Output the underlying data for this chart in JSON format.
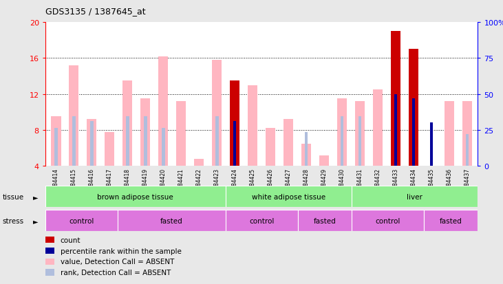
{
  "title": "GDS3135 / 1387645_at",
  "samples": [
    "GSM184414",
    "GSM184415",
    "GSM184416",
    "GSM184417",
    "GSM184418",
    "GSM184419",
    "GSM184420",
    "GSM184421",
    "GSM184422",
    "GSM184423",
    "GSM184424",
    "GSM184425",
    "GSM184426",
    "GSM184427",
    "GSM184428",
    "GSM184429",
    "GSM184430",
    "GSM184431",
    "GSM184432",
    "GSM184433",
    "GSM184434",
    "GSM184435",
    "GSM184436",
    "GSM184437"
  ],
  "pink_values": [
    9.5,
    15.2,
    9.2,
    7.8,
    13.5,
    11.5,
    16.2,
    11.2,
    4.8,
    15.8,
    13.5,
    13.0,
    8.2,
    9.2,
    6.5,
    5.2,
    11.5,
    11.2,
    12.5,
    null,
    null,
    null,
    11.2,
    11.2
  ],
  "light_blue_values": [
    8.2,
    9.5,
    9.0,
    null,
    9.5,
    9.5,
    8.2,
    null,
    null,
    9.5,
    null,
    null,
    null,
    null,
    7.8,
    null,
    9.5,
    9.5,
    null,
    null,
    null,
    null,
    null,
    7.5
  ],
  "red_values": [
    null,
    null,
    null,
    null,
    null,
    null,
    null,
    null,
    null,
    null,
    13.5,
    null,
    null,
    null,
    null,
    null,
    null,
    null,
    null,
    19.0,
    17.0,
    null,
    null,
    null
  ],
  "blue_values": [
    null,
    null,
    null,
    null,
    null,
    null,
    null,
    null,
    null,
    null,
    9.0,
    null,
    null,
    null,
    null,
    null,
    null,
    null,
    null,
    12.0,
    11.5,
    8.8,
    null,
    null
  ],
  "tissue_groups": [
    {
      "label": "brown adipose tissue",
      "start": 0,
      "end": 10,
      "color": "#90EE90"
    },
    {
      "label": "white adipose tissue",
      "start": 10,
      "end": 17,
      "color": "#90EE90"
    },
    {
      "label": "liver",
      "start": 17,
      "end": 24,
      "color": "#90EE90"
    }
  ],
  "stress_groups": [
    {
      "label": "control",
      "start": 0,
      "end": 4,
      "color": "#DD77DD"
    },
    {
      "label": "fasted",
      "start": 4,
      "end": 10,
      "color": "#DD77DD"
    },
    {
      "label": "control",
      "start": 10,
      "end": 14,
      "color": "#DD77DD"
    },
    {
      "label": "fasted",
      "start": 14,
      "end": 17,
      "color": "#DD77DD"
    },
    {
      "label": "control",
      "start": 17,
      "end": 21,
      "color": "#DD77DD"
    },
    {
      "label": "fasted",
      "start": 21,
      "end": 24,
      "color": "#DD77DD"
    }
  ],
  "ylim_left": [
    4,
    20
  ],
  "ylim_right": [
    0,
    100
  ],
  "yticks_left": [
    4,
    8,
    12,
    16,
    20
  ],
  "yticks_right": [
    0,
    25,
    50,
    75,
    100
  ],
  "background_color": "#e8e8e8",
  "plot_bg": "#ffffff",
  "legend_items": [
    {
      "color": "#cc0000",
      "label": "count"
    },
    {
      "color": "#000099",
      "label": "percentile rank within the sample"
    },
    {
      "color": "#ffb6c1",
      "label": "value, Detection Call = ABSENT"
    },
    {
      "color": "#b0bedd",
      "label": "rank, Detection Call = ABSENT"
    }
  ]
}
